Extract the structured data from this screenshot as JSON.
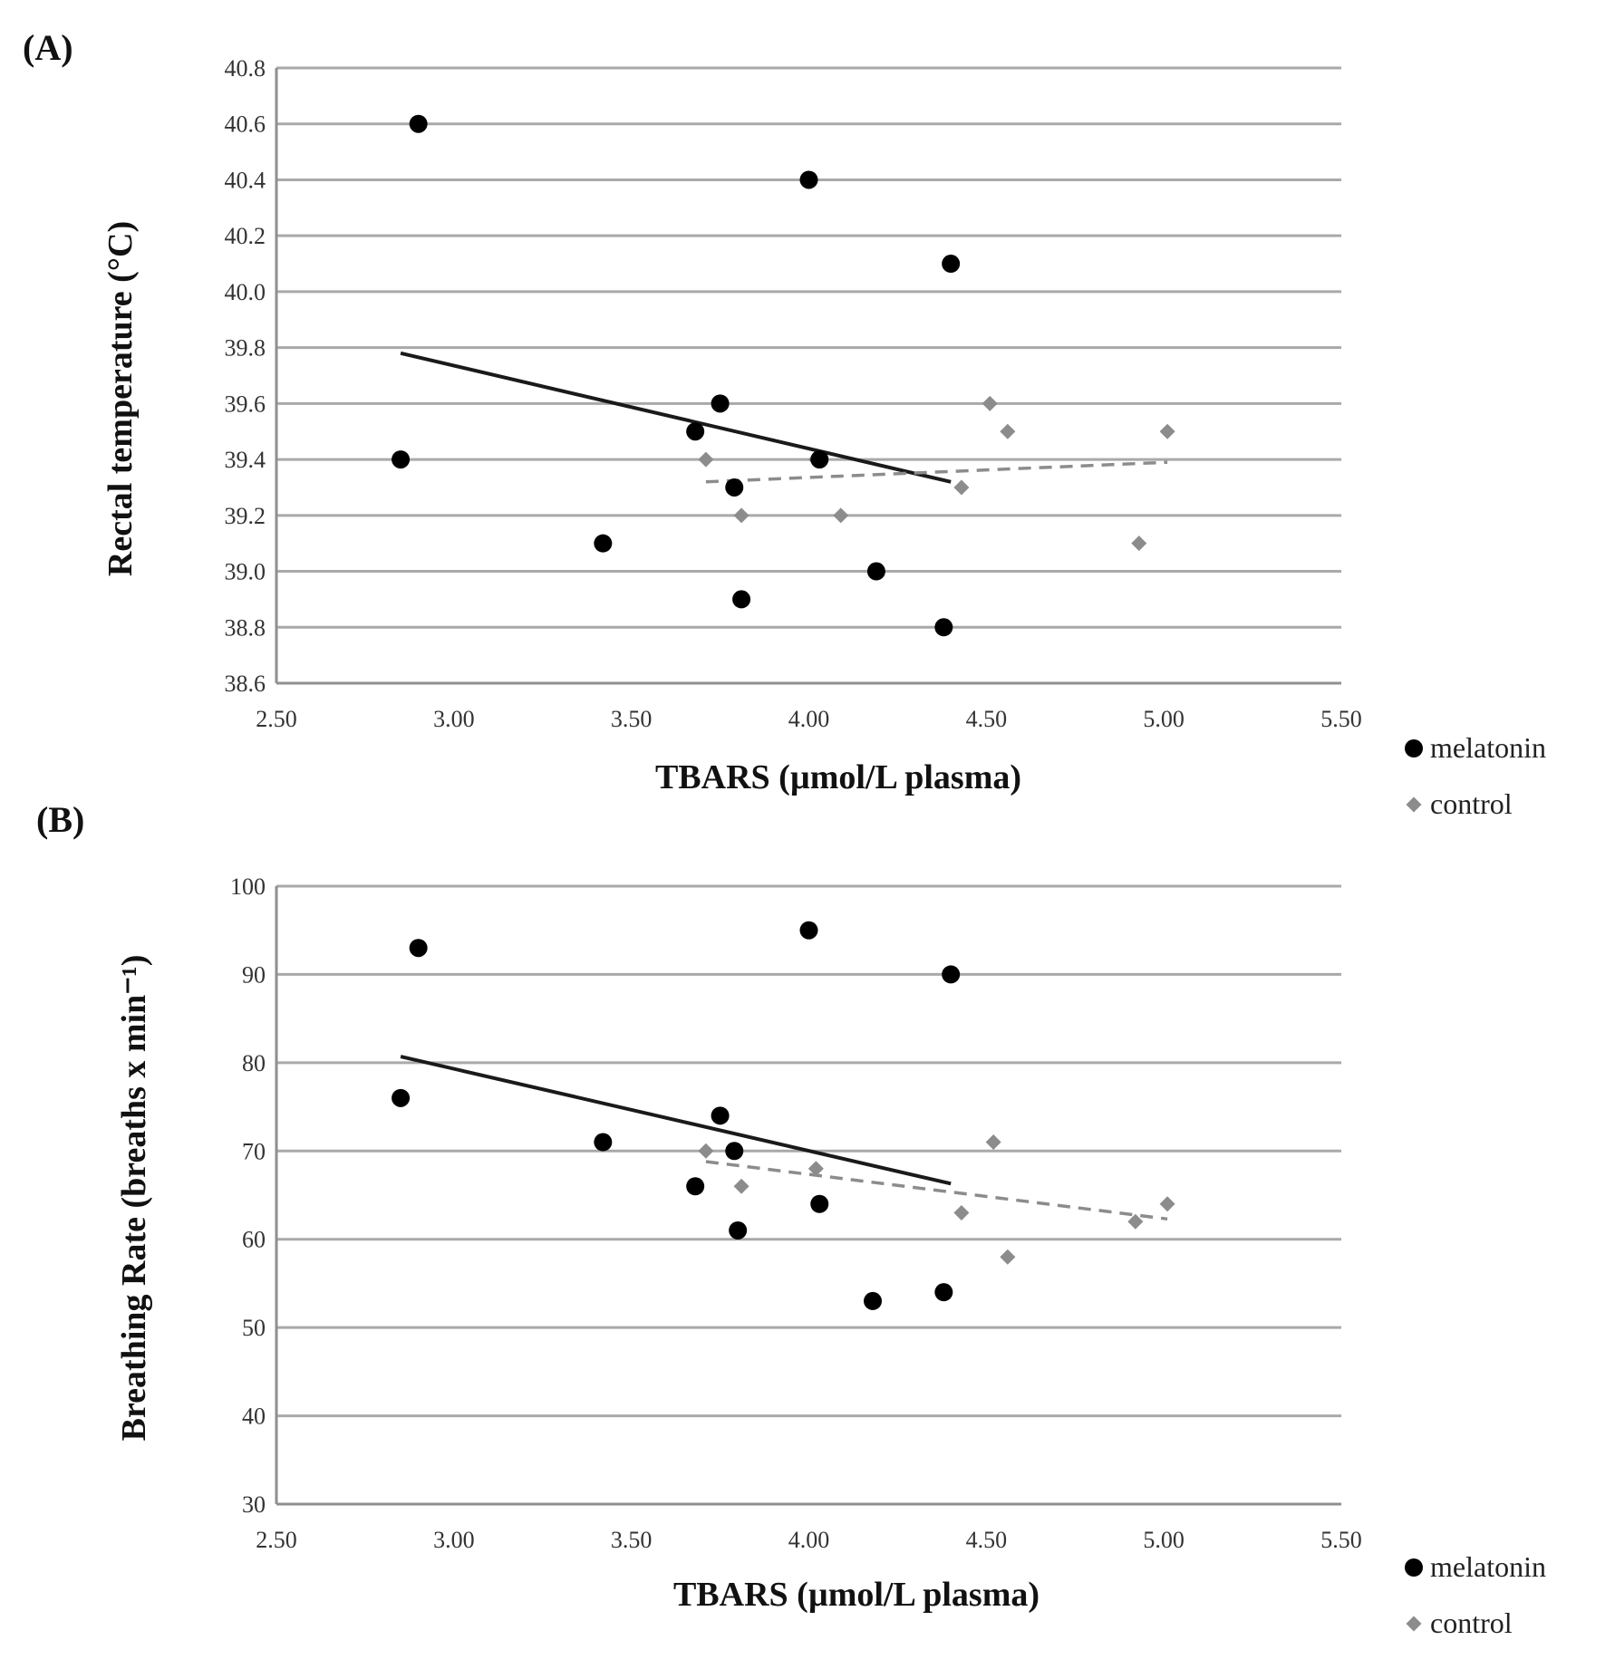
{
  "chart_data": [
    {
      "type": "scatter",
      "panel_label": "(A)",
      "xlabel": "TBARS  (µmol/L plasma)",
      "ylabel": "Rectal temperature (°C)",
      "xlim": [
        2.5,
        5.5
      ],
      "ylim": [
        38.6,
        40.8
      ],
      "x_ticks": [
        "2.50",
        "3.00",
        "3.50",
        "4.00",
        "4.50",
        "5.00",
        "5.50"
      ],
      "y_ticks": [
        "38.6",
        "38.8",
        "39.0",
        "39.2",
        "39.4",
        "39.6",
        "39.8",
        "40.0",
        "40.2",
        "40.4",
        "40.6",
        "40.8"
      ],
      "grid": "horizontal",
      "legend_position": "bottom-right",
      "series": [
        {
          "name": "melatonin",
          "color": "#000000",
          "marker": "circle",
          "x": [
            2.9,
            4.0,
            4.4,
            3.75,
            3.68,
            2.85,
            3.79,
            3.42,
            4.19,
            3.81,
            4.38,
            4.03
          ],
          "y": [
            40.6,
            40.4,
            40.1,
            39.6,
            39.5,
            39.4,
            39.3,
            39.1,
            39.0,
            38.9,
            38.8,
            39.4
          ],
          "trend": {
            "style": "solid",
            "x": [
              2.85,
              4.4
            ],
            "y": [
              39.78,
              39.32
            ]
          }
        },
        {
          "name": "control",
          "color": "#8c8c8c",
          "marker": "diamond",
          "x": [
            4.51,
            4.56,
            5.01,
            3.71,
            4.02,
            4.43,
            3.81,
            4.09,
            4.93
          ],
          "y": [
            39.6,
            39.5,
            39.5,
            39.4,
            39.4,
            39.3,
            39.2,
            39.2,
            39.1
          ],
          "trend": {
            "style": "dashed",
            "x": [
              3.71,
              5.01
            ],
            "y": [
              39.32,
              39.39
            ]
          }
        }
      ]
    },
    {
      "type": "scatter",
      "panel_label": "(B)",
      "xlabel": "TBARS  (µmol/L plasma)",
      "ylabel": "Breathing Rate (breaths x min⁻¹)",
      "xlim": [
        2.5,
        5.5
      ],
      "ylim": [
        30,
        100
      ],
      "x_ticks": [
        "2.50",
        "3.00",
        "3.50",
        "4.00",
        "4.50",
        "5.00",
        "5.50"
      ],
      "y_ticks": [
        "30",
        "40",
        "50",
        "60",
        "70",
        "80",
        "90",
        "100"
      ],
      "grid": "horizontal",
      "legend_position": "bottom-right",
      "series": [
        {
          "name": "melatonin",
          "color": "#000000",
          "marker": "circle",
          "x": [
            2.9,
            4.0,
            4.4,
            2.85,
            3.75,
            3.42,
            3.79,
            3.68,
            4.03,
            3.8,
            4.18,
            4.38
          ],
          "y": [
            93,
            95,
            90,
            76,
            74,
            71,
            70,
            66,
            64,
            61,
            53,
            54
          ],
          "trend": {
            "style": "solid",
            "x": [
              2.85,
              4.4
            ],
            "y": [
              80.7,
              66.3
            ]
          }
        },
        {
          "name": "control",
          "color": "#8c8c8c",
          "marker": "diamond",
          "x": [
            3.71,
            4.52,
            4.02,
            3.81,
            4.43,
            5.01,
            4.92,
            4.56
          ],
          "y": [
            70,
            71,
            68,
            66,
            63,
            64,
            62,
            58
          ],
          "trend": {
            "style": "dashed",
            "x": [
              3.71,
              5.01
            ],
            "y": [
              68.8,
              62.3
            ]
          }
        }
      ]
    }
  ]
}
